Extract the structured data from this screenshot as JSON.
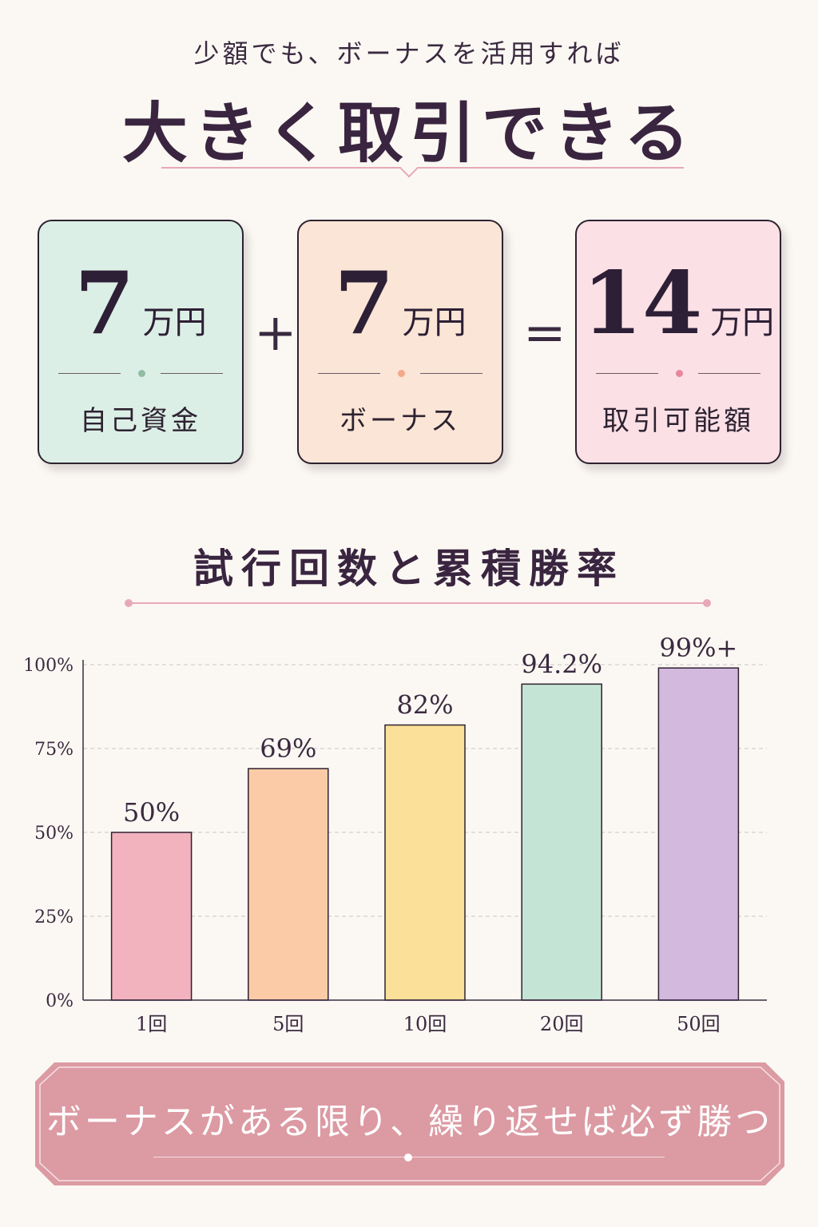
{
  "header": {
    "subtitle": "少額でも、ボーナスを活用すれば",
    "headline": "大きく取引できる"
  },
  "equation": {
    "plus": "+",
    "equals": "=",
    "cards": [
      {
        "number": "7",
        "unit": "万円",
        "label": "自己資金",
        "bg": "#dcefe6",
        "dot": "#8fbea3"
      },
      {
        "number": "7",
        "unit": "万円",
        "label": "ボーナス",
        "bg": "#fbe5d6",
        "dot": "#f2a98a"
      },
      {
        "number": "14",
        "unit": "万円",
        "label": "取引可能額",
        "bg": "#fbe0e6",
        "dot": "#e8879c"
      }
    ]
  },
  "chart_section": {
    "title": "試行回数と累積勝率"
  },
  "chart_data": {
    "type": "bar",
    "title": "試行回数と累積勝率",
    "categories": [
      "1回",
      "5回",
      "10回",
      "20回",
      "50回"
    ],
    "values": [
      50,
      69,
      82,
      94.2,
      99
    ],
    "data_labels": [
      "50%",
      "69%",
      "82%",
      "94.2%",
      "99%+"
    ],
    "colors": [
      "#f2b3bf",
      "#fbcba8",
      "#fbe09a",
      "#c4e4d5",
      "#d3b9de"
    ],
    "ylim": [
      0,
      100
    ],
    "yticks": [
      0,
      25,
      50,
      75,
      100
    ],
    "ytick_labels": [
      "0%",
      "25%",
      "50%",
      "75%",
      "100%"
    ],
    "grid": true
  },
  "banner": {
    "text": "ボーナスがある限り、繰り返せば必ず勝つ",
    "color": "#dc9aa3"
  }
}
